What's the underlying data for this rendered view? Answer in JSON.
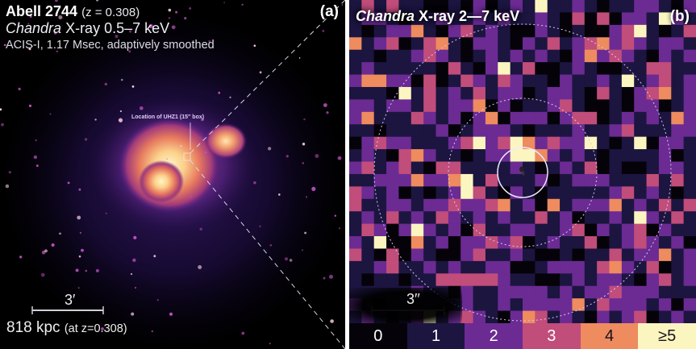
{
  "panel_a": {
    "title": "Abell 2744",
    "redshift": "(z = 0.308)",
    "instrument_italic": "Chandra",
    "band": "X-ray 0.5–7 keV",
    "details": "ACIS-I, 1.17 Msec, adaptively smoothed",
    "panel_label": "(a)",
    "annotation": "Location of UHZ1 (15′′ box)",
    "scale_angle": "3′",
    "scale_distance": "818 kpc",
    "scale_note": "(at z=0.308)"
  },
  "panel_b": {
    "instrument_italic": "Chandra",
    "band": "X-ray 2—7 keV",
    "panel_label": "(b)",
    "scale_angle": "3′′",
    "colorbar": [
      {
        "label": "0",
        "color": "#050309",
        "text_color": "#ffffff"
      },
      {
        "label": "1",
        "color": "#1c1540",
        "text_color": "#ffffff"
      },
      {
        "label": "2",
        "color": "#6b2b93",
        "text_color": "#ffffff"
      },
      {
        "label": "3",
        "color": "#c14d7a",
        "text_color": "#ffffff"
      },
      {
        "label": "4",
        "color": "#ee8b5f",
        "text_color": "#1a1020"
      },
      {
        "label": "≥5",
        "color": "#fbf6c0",
        "text_color": "#1a1020"
      }
    ],
    "counts_grid": [
      [
        1,
        3,
        1,
        3,
        1,
        1,
        0,
        0,
        1,
        0,
        2,
        0,
        1,
        2,
        1,
        5,
        1,
        1,
        2,
        1,
        0,
        1,
        1,
        2,
        2,
        1,
        0,
        2
      ],
      [
        1,
        2,
        2,
        1,
        0,
        1,
        1,
        2,
        1,
        1,
        2,
        1,
        2,
        1,
        1,
        2,
        1,
        0,
        3,
        0,
        3,
        0,
        2,
        2,
        1,
        5,
        2,
        1
      ],
      [
        1,
        0,
        1,
        2,
        2,
        4,
        1,
        0,
        2,
        3,
        1,
        2,
        1,
        0,
        0,
        2,
        1,
        0,
        1,
        0,
        0,
        2,
        3,
        5,
        1,
        0,
        1,
        3
      ],
      [
        4,
        1,
        2,
        3,
        0,
        1,
        3,
        4,
        1,
        0,
        2,
        2,
        1,
        0,
        2,
        1,
        3,
        1,
        2,
        3,
        4,
        2,
        3,
        2,
        1,
        2,
        2,
        1
      ],
      [
        1,
        1,
        0,
        1,
        1,
        2,
        3,
        2,
        1,
        0,
        1,
        2,
        1,
        2,
        1,
        2,
        1,
        0,
        2,
        4,
        2,
        3,
        2,
        1,
        0,
        2,
        1,
        2
      ],
      [
        1,
        2,
        1,
        1,
        1,
        1,
        1,
        0,
        3,
        1,
        0,
        2,
        5,
        1,
        3,
        0,
        0,
        1,
        2,
        1,
        0,
        0,
        1,
        1,
        3,
        3,
        1,
        1
      ],
      [
        2,
        4,
        4,
        2,
        2,
        0,
        3,
        0,
        1,
        3,
        2,
        1,
        3,
        2,
        1,
        1,
        0,
        2,
        1,
        1,
        2,
        1,
        5,
        1,
        2,
        3,
        1,
        2
      ],
      [
        1,
        1,
        1,
        0,
        5,
        1,
        3,
        1,
        2,
        1,
        3,
        1,
        2,
        2,
        0,
        1,
        2,
        2,
        1,
        0,
        3,
        1,
        0,
        2,
        3,
        4,
        1,
        2
      ],
      [
        2,
        2,
        1,
        2,
        2,
        1,
        3,
        1,
        2,
        2,
        4,
        0,
        2,
        0,
        1,
        1,
        2,
        3,
        1,
        0,
        0,
        1,
        0,
        2,
        2,
        0,
        1,
        2
      ],
      [
        2,
        4,
        1,
        1,
        1,
        3,
        2,
        1,
        2,
        0,
        2,
        4,
        0,
        2,
        2,
        2,
        0,
        2,
        3,
        3,
        0,
        1,
        2,
        1,
        2,
        1,
        4,
        2
      ],
      [
        1,
        1,
        0,
        1,
        1,
        1,
        1,
        2,
        0,
        1,
        2,
        2,
        2,
        1,
        0,
        1,
        1,
        1,
        2,
        1,
        1,
        2,
        3,
        1,
        1,
        1,
        2,
        2
      ],
      [
        0,
        2,
        3,
        2,
        2,
        1,
        1,
        1,
        2,
        3,
        5,
        2,
        3,
        5,
        4,
        2,
        3,
        2,
        2,
        5,
        1,
        0,
        1,
        5,
        0,
        2,
        2,
        1
      ],
      [
        1,
        2,
        1,
        0,
        3,
        4,
        2,
        1,
        1,
        0,
        1,
        2,
        2,
        5,
        5,
        4,
        2,
        1,
        2,
        1,
        0,
        1,
        1,
        1,
        1,
        2,
        0,
        1
      ],
      [
        2,
        3,
        1,
        2,
        3,
        1,
        0,
        3,
        3,
        1,
        1,
        1,
        1,
        2,
        1,
        0,
        1,
        2,
        1,
        3,
        0,
        1,
        0,
        0,
        1,
        2,
        2,
        1
      ],
      [
        1,
        1,
        2,
        2,
        2,
        4,
        2,
        2,
        4,
        5,
        1,
        3,
        1,
        1,
        1,
        2,
        0,
        1,
        2,
        2,
        2,
        1,
        1,
        1,
        3,
        1,
        3,
        1
      ],
      [
        3,
        2,
        1,
        2,
        0,
        1,
        0,
        1,
        2,
        5,
        3,
        1,
        0,
        2,
        1,
        0,
        1,
        1,
        1,
        1,
        1,
        2,
        3,
        1,
        2,
        1,
        0,
        1
      ],
      [
        3,
        1,
        1,
        2,
        2,
        1,
        2,
        2,
        3,
        2,
        2,
        3,
        4,
        1,
        2,
        0,
        4,
        1,
        2,
        2,
        2,
        4,
        1,
        2,
        1,
        3,
        1,
        3
      ],
      [
        1,
        2,
        1,
        3,
        1,
        2,
        1,
        3,
        2,
        1,
        2,
        1,
        2,
        1,
        1,
        3,
        1,
        2,
        0,
        1,
        1,
        2,
        1,
        5,
        2,
        1,
        3,
        1
      ],
      [
        1,
        3,
        2,
        0,
        2,
        5,
        2,
        1,
        2,
        0,
        3,
        1,
        1,
        2,
        2,
        1,
        1,
        2,
        3,
        0,
        2,
        1,
        2,
        3,
        0,
        2,
        1,
        1
      ],
      [
        2,
        1,
        5,
        0,
        0,
        4,
        1,
        2,
        0,
        2,
        2,
        3,
        2,
        3,
        0,
        1,
        2,
        1,
        1,
        3,
        0,
        1,
        2,
        3,
        2,
        1,
        2,
        0
      ],
      [
        3,
        1,
        0,
        3,
        0,
        2,
        1,
        0,
        0,
        2,
        3,
        1,
        1,
        2,
        1,
        0,
        0,
        1,
        0,
        1,
        1,
        3,
        1,
        2,
        2,
        4,
        1,
        2
      ],
      [
        1,
        1,
        2,
        3,
        1,
        1,
        2,
        1,
        2,
        1,
        1,
        2,
        2,
        0,
        0,
        1,
        2,
        2,
        2,
        1,
        3,
        4,
        2,
        1,
        3,
        0,
        1,
        2
      ],
      [
        1,
        0,
        1,
        1,
        0,
        1,
        1,
        3,
        3,
        3,
        3,
        3,
        2,
        1,
        1,
        0,
        0,
        1,
        2,
        1,
        2,
        2,
        1,
        0,
        2,
        3,
        1,
        2
      ],
      [
        1,
        1,
        1,
        1,
        1,
        2,
        1,
        1,
        0,
        2,
        1,
        1,
        2,
        2,
        2,
        2,
        1,
        2,
        1,
        2,
        2,
        3,
        2,
        2,
        2,
        1,
        1,
        1
      ],
      [
        2,
        1,
        0,
        1,
        1,
        1,
        1,
        1,
        1,
        2,
        1,
        1,
        2,
        1,
        2,
        2,
        2,
        2,
        4,
        1,
        3,
        2,
        2,
        2,
        1,
        2,
        0,
        2
      ],
      [
        1,
        2,
        1,
        0,
        1,
        2,
        5,
        1,
        2,
        3,
        2,
        1,
        0,
        2,
        4,
        3,
        1,
        2,
        1,
        0,
        2,
        1,
        2,
        3,
        0,
        1,
        2,
        1
      ]
    ]
  }
}
